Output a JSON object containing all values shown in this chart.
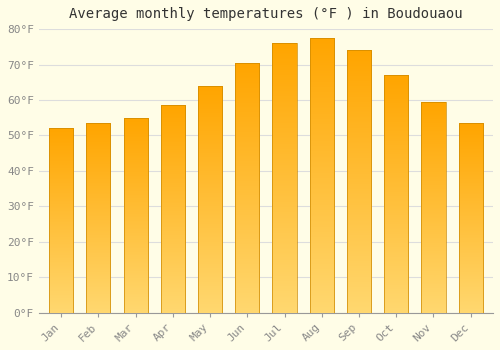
{
  "title": "Average monthly temperatures (°F ) in Boudouaou",
  "months": [
    "Jan",
    "Feb",
    "Mar",
    "Apr",
    "May",
    "Jun",
    "Jul",
    "Aug",
    "Sep",
    "Oct",
    "Nov",
    "Dec"
  ],
  "values": [
    52.0,
    53.5,
    55.0,
    58.5,
    64.0,
    70.5,
    76.0,
    77.5,
    74.0,
    67.0,
    59.5,
    53.5
  ],
  "bar_color_light": "#FFD870",
  "bar_color_dark": "#FFA500",
  "bar_edge_color": "#CC8800",
  "ylim": [
    0,
    80
  ],
  "yticks": [
    0,
    10,
    20,
    30,
    40,
    50,
    60,
    70,
    80
  ],
  "ytick_labels": [
    "0°F",
    "10°F",
    "20°F",
    "30°F",
    "40°F",
    "50°F",
    "60°F",
    "70°F",
    "80°F"
  ],
  "background_color": "#FFFDE7",
  "grid_color": "#DDDDDD",
  "title_fontsize": 10,
  "tick_fontsize": 8,
  "tick_color": "#888888",
  "font_family": "monospace"
}
